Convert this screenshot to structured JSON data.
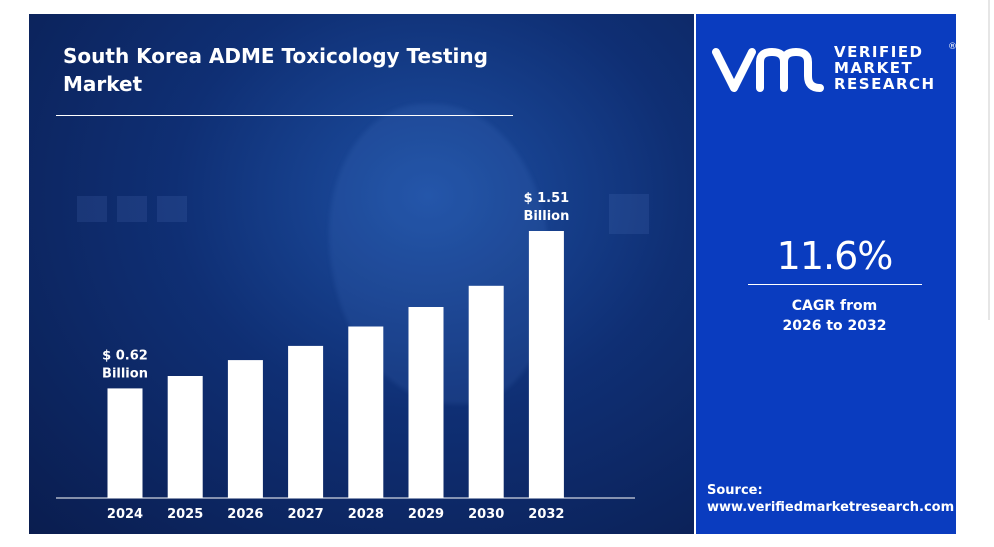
{
  "chart_data": {
    "type": "bar",
    "title": "South Korea ADME Toxicology Testing Market",
    "categories": [
      "2024",
      "2025",
      "2026",
      "2027",
      "2028",
      "2029",
      "2030",
      "2032"
    ],
    "values": [
      0.62,
      0.69,
      0.78,
      0.86,
      0.97,
      1.08,
      1.2,
      1.51
    ],
    "unit": "Billion",
    "data_labels": [
      {
        "category": "2024",
        "line1": "$ 0.62",
        "line2": "Billion"
      },
      {
        "category": "2032",
        "line1": "$ 1.51",
        "line2": "Billion"
      }
    ],
    "ylim": [
      0,
      1.51
    ],
    "grid": false,
    "legend": "none",
    "bar_color": "#ffffff"
  },
  "brand": {
    "name_line1": "VERIFIED",
    "name_line2": "MARKET",
    "name_line3": "RESEARCH",
    "registered": "®"
  },
  "cagr": {
    "value": "11.6%",
    "label_line1": "CAGR from",
    "label_line2": "2026 to 2032"
  },
  "source": {
    "label": "Source:",
    "url": "www.verifiedmarketresearch.com"
  },
  "colors": {
    "panel_blue": "#0a3cbf",
    "chart_bg": "#0f2f74",
    "bar": "#ffffff"
  }
}
